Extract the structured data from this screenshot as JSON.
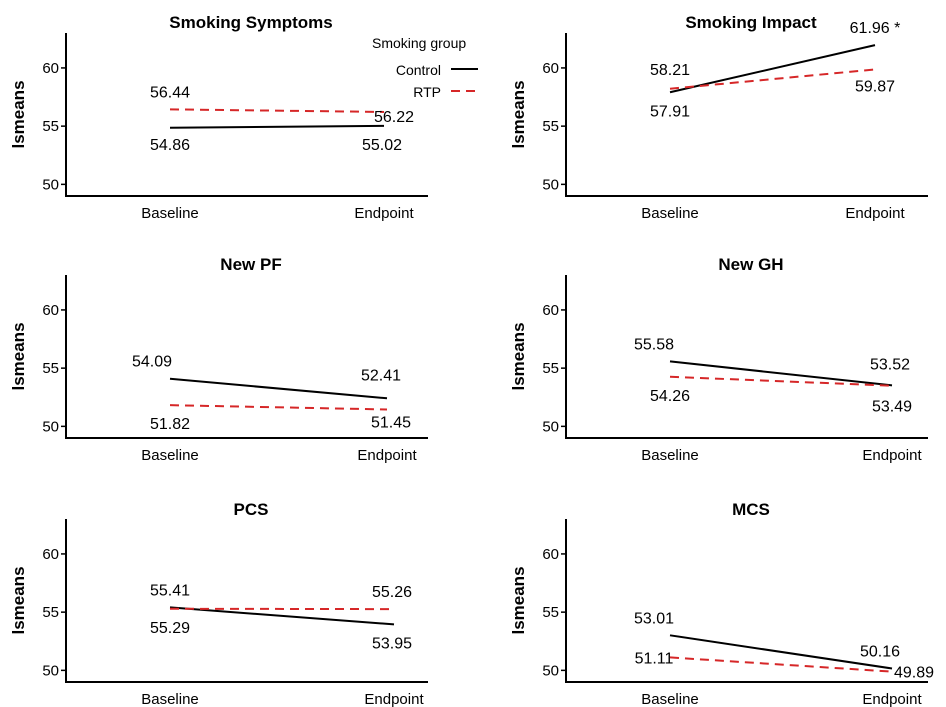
{
  "chart_data": [
    {
      "type": "line",
      "title": "Smoking Symptoms",
      "ylabel": "lsmeans",
      "categories": [
        "Baseline",
        "Endpoint"
      ],
      "ylim": [
        49,
        63
      ],
      "yticks": [
        50,
        55,
        60
      ],
      "series": [
        {
          "name": "Control",
          "values": [
            54.86,
            55.02
          ],
          "labels": [
            "54.86",
            "55.02"
          ]
        },
        {
          "name": "RTP",
          "values": [
            56.44,
            56.22
          ],
          "labels": [
            "56.44",
            "56.22"
          ]
        }
      ]
    },
    {
      "type": "line",
      "title": "Smoking Impact",
      "ylabel": "lsmeans",
      "categories": [
        "Baseline",
        "Endpoint"
      ],
      "ylim": [
        49,
        63
      ],
      "yticks": [
        50,
        55,
        60
      ],
      "series": [
        {
          "name": "Control",
          "values": [
            57.91,
            61.96
          ],
          "labels": [
            "57.91",
            "61.96 *"
          ]
        },
        {
          "name": "RTP",
          "values": [
            58.21,
            59.87
          ],
          "labels": [
            "58.21",
            "59.87"
          ]
        }
      ]
    },
    {
      "type": "line",
      "title": "New PF",
      "ylabel": "lsmeans",
      "categories": [
        "Baseline",
        "Endpoint"
      ],
      "ylim": [
        49,
        63
      ],
      "yticks": [
        50,
        55,
        60
      ],
      "series": [
        {
          "name": "Control",
          "values": [
            54.09,
            52.41
          ],
          "labels": [
            "54.09",
            "52.41"
          ]
        },
        {
          "name": "RTP",
          "values": [
            51.82,
            51.45
          ],
          "labels": [
            "51.82",
            "51.45"
          ]
        }
      ]
    },
    {
      "type": "line",
      "title": "New GH",
      "ylabel": "lsmeans",
      "categories": [
        "Baseline",
        "Endpoint"
      ],
      "ylim": [
        49,
        63
      ],
      "yticks": [
        50,
        55,
        60
      ],
      "series": [
        {
          "name": "Control",
          "values": [
            55.58,
            53.52
          ],
          "labels": [
            "55.58",
            "53.52"
          ]
        },
        {
          "name": "RTP",
          "values": [
            54.26,
            53.49
          ],
          "labels": [
            "54.26",
            "53.49"
          ]
        }
      ]
    },
    {
      "type": "line",
      "title": "PCS",
      "ylabel": "lsmeans",
      "categories": [
        "Baseline",
        "Endpoint"
      ],
      "ylim": [
        49,
        63
      ],
      "yticks": [
        50,
        55,
        60
      ],
      "series": [
        {
          "name": "Control",
          "values": [
            55.41,
            53.95
          ],
          "labels": [
            "55.41",
            "53.95"
          ]
        },
        {
          "name": "RTP",
          "values": [
            55.29,
            55.26
          ],
          "labels": [
            "55.29",
            "55.26"
          ]
        }
      ]
    },
    {
      "type": "line",
      "title": "MCS",
      "ylabel": "lsmeans",
      "categories": [
        "Baseline",
        "Endpoint"
      ],
      "ylim": [
        49,
        63
      ],
      "yticks": [
        50,
        55,
        60
      ],
      "series": [
        {
          "name": "Control",
          "values": [
            53.01,
            50.16
          ],
          "labels": [
            "53.01",
            "50.16"
          ]
        },
        {
          "name": "RTP",
          "values": [
            51.11,
            49.89
          ],
          "labels": [
            "51.11",
            "49.89"
          ]
        }
      ]
    }
  ],
  "legend": {
    "title": "Smoking group",
    "placement": "top-right of first panel",
    "entries": [
      {
        "name": "Control",
        "color": "#000000",
        "dash": "solid"
      },
      {
        "name": "RTP",
        "color": "#d62728",
        "dash": "dashed"
      }
    ]
  },
  "colors": {
    "control": "#000000",
    "rtp": "#d62728"
  }
}
